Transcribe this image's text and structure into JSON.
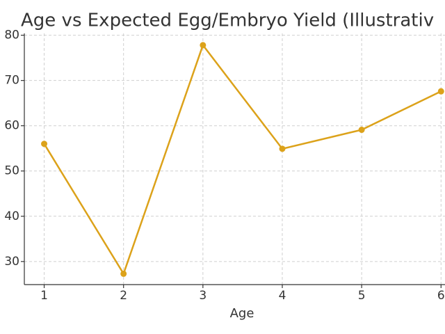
{
  "chart_data": {
    "type": "line",
    "title": "Age vs Expected Egg/Embryo Yield (Illustrativ",
    "x_label": "Age",
    "x": [
      1,
      2,
      3,
      4,
      5,
      6
    ],
    "series": [
      {
        "color": "#dca21a",
        "values": [
          56,
          27.3,
          77.8,
          54.9,
          59.1,
          67.6
        ]
      }
    ],
    "xlim": [
      0.75,
      6.05
    ],
    "xticks": [
      1,
      2,
      3,
      4,
      5,
      6
    ],
    "ylim": [
      24.9,
      80.4
    ],
    "yticks": [
      30,
      40,
      50,
      60,
      70,
      80
    ],
    "grid": true
  }
}
